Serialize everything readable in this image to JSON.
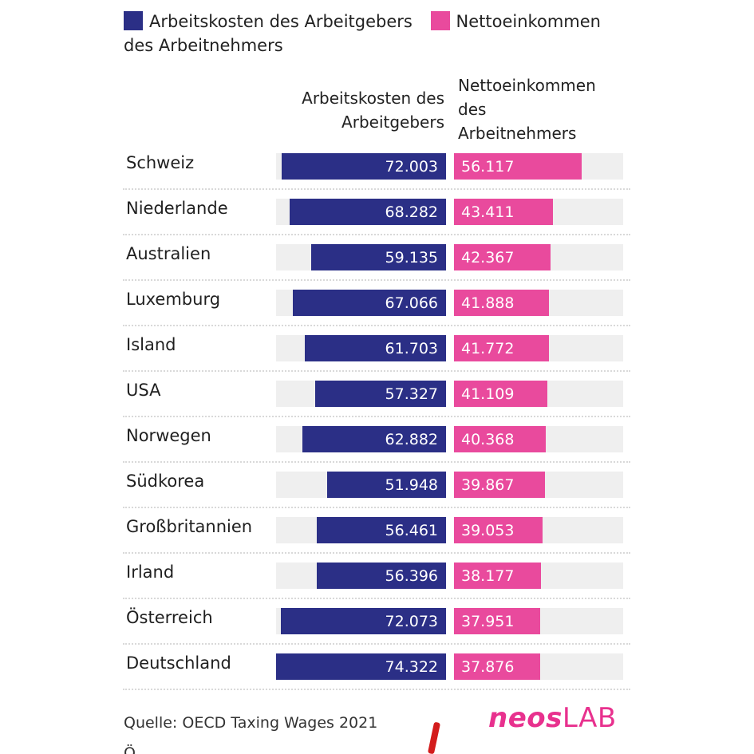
{
  "legend": {
    "items": [
      {
        "label": "Arbeitskosten des Arbeitgebers",
        "color": "#2b2f86"
      },
      {
        "label": "Nettoeinkommen",
        "color": "#e94a9d"
      }
    ],
    "label_cont": "des Arbeitnehmers"
  },
  "chart_data": {
    "type": "bar",
    "columns": [
      "Arbeitskosten des Arbeitgebers",
      "Nettoeinkommen des Arbeitnehmers"
    ],
    "categories": [
      "Schweiz",
      "Niederlande",
      "Australien",
      "Luxemburg",
      "Island",
      "USA",
      "Norwegen",
      "Südkorea",
      "Großbritannien",
      "Irland",
      "Österreich",
      "Deutschland"
    ],
    "series": [
      {
        "name": "Arbeitskosten des Arbeitgebers",
        "values": [
          72003,
          68282,
          59135,
          67066,
          61703,
          57327,
          62882,
          51948,
          56461,
          56396,
          72073,
          74322
        ],
        "labels": [
          "72.003",
          "68.282",
          "59.135",
          "67.066",
          "61.703",
          "57.327",
          "62.882",
          "51.948",
          "56.461",
          "56.396",
          "72.073",
          "74.322"
        ],
        "color": "#2b2f86"
      },
      {
        "name": "Nettoeinkommen des Arbeitnehmers",
        "values": [
          56117,
          43411,
          42367,
          41888,
          41772,
          41109,
          40368,
          39867,
          39053,
          38177,
          37951,
          37876
        ],
        "labels": [
          "56.117",
          "43.411",
          "42.367",
          "41.888",
          "41.772",
          "41.109",
          "40.368",
          "39.867",
          "39.053",
          "38.177",
          "37.951",
          "37.876"
        ],
        "color": "#e94a9d"
      }
    ]
  },
  "source": "Quelle: OECD Taxing Wages 2021",
  "logo": {
    "part1": "neos",
    "part2": "LAB"
  },
  "bottom_text": "Ö"
}
